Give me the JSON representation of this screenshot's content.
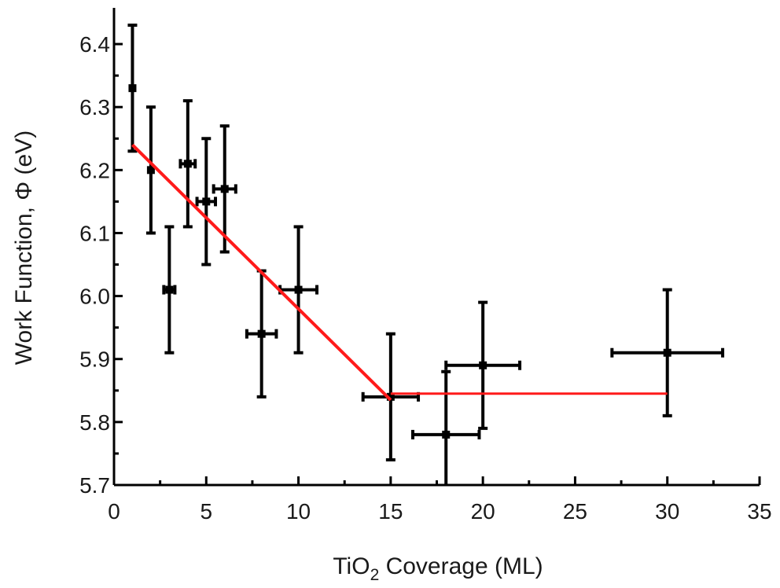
{
  "chart_data": {
    "type": "scatter",
    "title": "",
    "xlabel_main": "TiO",
    "xlabel_sub": "2",
    "xlabel_rest": " Coverage (ML)",
    "ylabel": "Work Function, Φ (eV)",
    "xlim": [
      0,
      35
    ],
    "ylim": [
      5.7,
      6.45
    ],
    "x_ticks": [
      0,
      5,
      10,
      15,
      20,
      25,
      30,
      35
    ],
    "y_ticks": [
      5.7,
      5.8,
      5.9,
      6.0,
      6.1,
      6.2,
      6.3,
      6.4
    ],
    "grid": false,
    "legend": "none",
    "series": [
      {
        "points": [
          {
            "x": 1,
            "y": 6.33,
            "xerr": 0,
            "yerr": 0.1
          },
          {
            "x": 2,
            "y": 6.2,
            "xerr": 0,
            "yerr": 0.1
          },
          {
            "x": 3,
            "y": 6.01,
            "xerr": 0.3,
            "yerr": 0.1
          },
          {
            "x": 4,
            "y": 6.21,
            "xerr": 0.4,
            "yerr": 0.1
          },
          {
            "x": 5,
            "y": 6.15,
            "xerr": 0.5,
            "yerr": 0.1
          },
          {
            "x": 6,
            "y": 6.17,
            "xerr": 0.6,
            "yerr": 0.1
          },
          {
            "x": 8,
            "y": 5.94,
            "xerr": 0.8,
            "yerr": 0.1
          },
          {
            "x": 10,
            "y": 6.01,
            "xerr": 1.0,
            "yerr": 0.1
          },
          {
            "x": 15,
            "y": 5.84,
            "xerr": 1.5,
            "yerr": 0.1
          },
          {
            "x": 18,
            "y": 5.78,
            "xerr": 1.8,
            "yerr": 0.1
          },
          {
            "x": 20,
            "y": 5.89,
            "xerr": 2.0,
            "yerr": 0.1
          },
          {
            "x": 30,
            "y": 5.91,
            "xerr": 3.0,
            "yerr": 0.1
          }
        ]
      }
    ],
    "fit_lines": [
      {
        "x": [
          1,
          15
        ],
        "y": [
          6.24,
          5.835
        ],
        "color": "#e00000"
      },
      {
        "x": [
          15,
          30
        ],
        "y": [
          5.845,
          5.845
        ],
        "color": "#ff0000"
      }
    ]
  }
}
